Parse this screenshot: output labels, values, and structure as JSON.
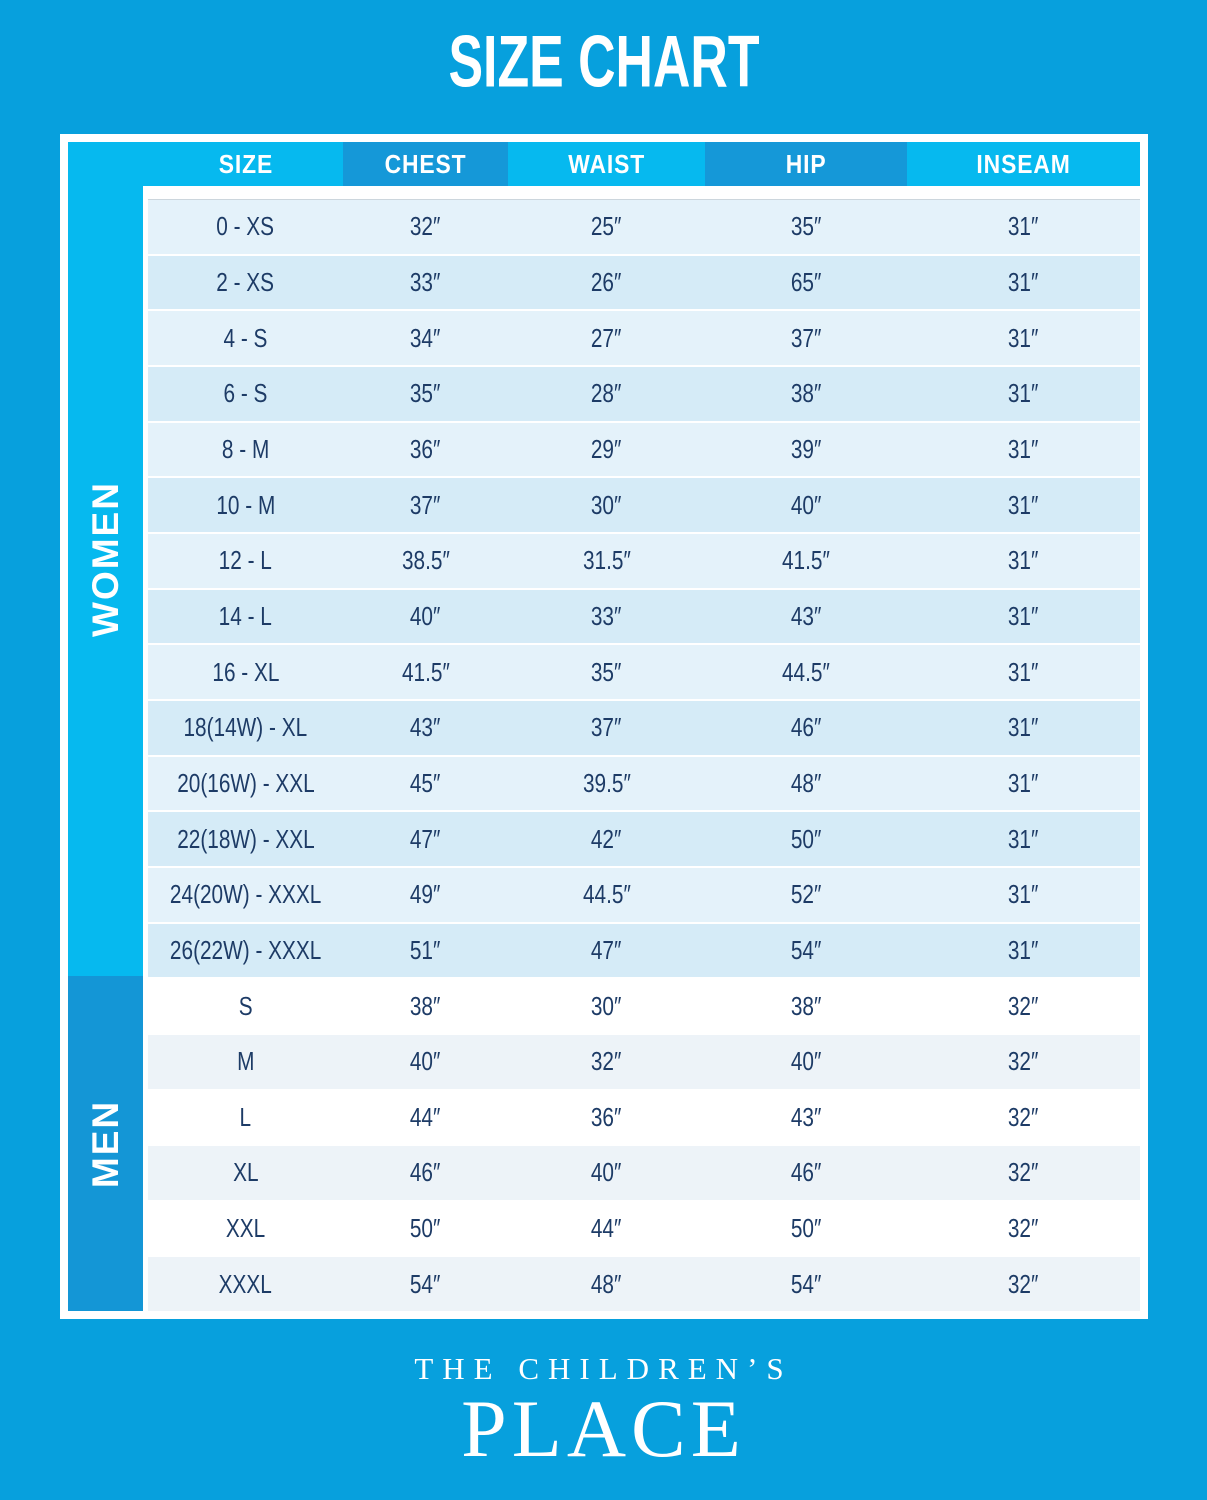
{
  "title": "SIZE CHART",
  "chart_data": {
    "type": "table",
    "title": "SIZE CHART",
    "columns": [
      "SIZE",
      "CHEST",
      "WAIST",
      "HIP",
      "INSEAM"
    ],
    "row_groups": [
      {
        "label": "WOMEN",
        "rows": [
          [
            "0 - XS",
            "32″",
            "25″",
            "35″",
            "31″"
          ],
          [
            "2 - XS",
            "33″",
            "26″",
            "65″",
            "31″"
          ],
          [
            "4 - S",
            "34″",
            "27″",
            "37″",
            "31″"
          ],
          [
            "6 - S",
            "35″",
            "28″",
            "38″",
            "31″"
          ],
          [
            "8 - M",
            "36″",
            "29″",
            "39″",
            "31″"
          ],
          [
            "10 - M",
            "37″",
            "30″",
            "40″",
            "31″"
          ],
          [
            "12 - L",
            "38.5″",
            "31.5″",
            "41.5″",
            "31″"
          ],
          [
            "14 - L",
            "40″",
            "33″",
            "43″",
            "31″"
          ],
          [
            "16 - XL",
            "41.5″",
            "35″",
            "44.5″",
            "31″"
          ],
          [
            "18(14W) - XL",
            "43″",
            "37″",
            "46″",
            "31″"
          ],
          [
            "20(16W) - XXL",
            "45″",
            "39.5″",
            "48″",
            "31″"
          ],
          [
            "22(18W) - XXL",
            "47″",
            "42″",
            "50″",
            "31″"
          ],
          [
            "24(20W) - XXXL",
            "49″",
            "44.5″",
            "52″",
            "31″"
          ],
          [
            "26(22W) - XXXL",
            "51″",
            "47″",
            "54″",
            "31″"
          ]
        ]
      },
      {
        "label": "MEN",
        "rows": [
          [
            "S",
            "38″",
            "30″",
            "38″",
            "32″"
          ],
          [
            "M",
            "40″",
            "32″",
            "40″",
            "32″"
          ],
          [
            "L",
            "44″",
            "36″",
            "43″",
            "32″"
          ],
          [
            "XL",
            "46″",
            "40″",
            "46″",
            "32″"
          ],
          [
            "XXL",
            "50″",
            "44″",
            "50″",
            "32″"
          ],
          [
            "XXXL",
            "54″",
            "48″",
            "54″",
            "32″"
          ]
        ]
      }
    ]
  },
  "logo": {
    "line1": "THE CHILDREN’S",
    "line2": "PLACE"
  },
  "colors": {
    "background": "#07A0DD",
    "band_women": "#06B9EF",
    "band_men": "#1496D6",
    "header_light": "#06B9EF",
    "header_dark": "#1598D8",
    "row_light": "#E4F2FA",
    "row_dark": "#D5EBF7",
    "row_white": "#FFFFFF",
    "row_gray": "#EDF3F8",
    "text_navy": "#1D3B66"
  }
}
